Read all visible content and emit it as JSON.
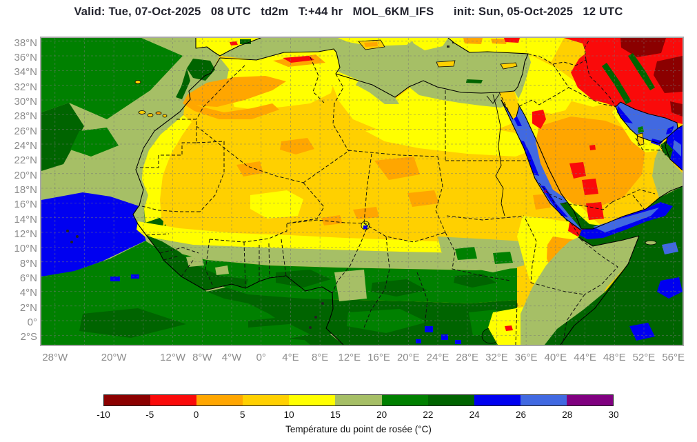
{
  "title": {
    "text": "Valid: Tue, 07-Oct-2025   08 UTC   td2m   T:+44 hr   MOL_6KM_IFS      init: Sun, 05-Oct-2025   12 UTC"
  },
  "axes": {
    "lat_labels": [
      "38°N",
      "36°N",
      "34°N",
      "32°N",
      "30°N",
      "28°N",
      "26°N",
      "24°N",
      "22°N",
      "20°N",
      "18°N",
      "16°N",
      "14°N",
      "12°N",
      "10°N",
      "8°N",
      "6°N",
      "4°N",
      "2°N",
      "0°",
      "2°S"
    ],
    "lon_labels": [
      "28°W",
      "20°W",
      "12°W",
      "8°W",
      "4°W",
      "0°",
      "4°E",
      "8°E",
      "12°E",
      "16°E",
      "20°E",
      "24°E",
      "28°E",
      "32°E",
      "36°E",
      "40°E",
      "44°E",
      "48°E",
      "52°E",
      "56°E"
    ]
  },
  "colorbar": {
    "tick_labels": [
      "-10",
      "-5",
      "0",
      "5",
      "10",
      "15",
      "20",
      "22",
      "24",
      "26",
      "28",
      "30"
    ],
    "segment_colors": [
      "#8b0000",
      "#fa0a0a",
      "#ffa600",
      "#ffd000",
      "#ffff00",
      "#a6bf66",
      "#008000",
      "#006400",
      "#0000f0",
      "#4169e1",
      "#800080"
    ],
    "caption": "Température du point de rosée (°C)",
    "units": "°C"
  }
}
